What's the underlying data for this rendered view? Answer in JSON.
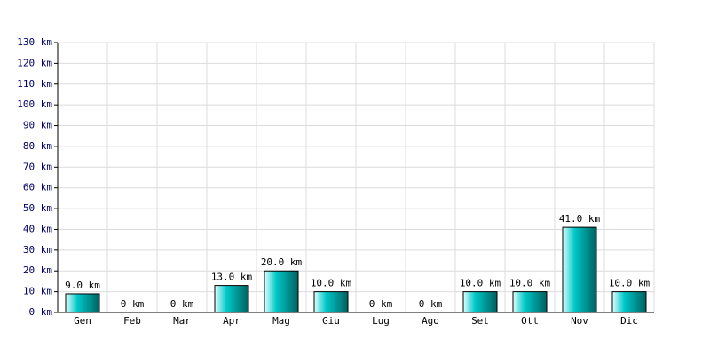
{
  "chart_data": {
    "type": "bar",
    "categories": [
      "Gen",
      "Feb",
      "Mar",
      "Apr",
      "Mag",
      "Giu",
      "Lug",
      "Ago",
      "Set",
      "Ott",
      "Nov",
      "Dic"
    ],
    "values": [
      9,
      0,
      0,
      13,
      20,
      10,
      0,
      0,
      10,
      10,
      41,
      10
    ],
    "value_labels": [
      "9.0 km",
      "0 km",
      "0 km",
      "13.0 km",
      "20.0 km",
      "10.0 km",
      "0 km",
      "0 km",
      "10.0 km",
      "10.0 km",
      "41.0 km",
      "10.0 km"
    ],
    "color": "#00c8c8",
    "ylim": [
      0,
      130
    ],
    "yticks": [
      {
        "value": 0,
        "label": "0 km"
      },
      {
        "value": 10,
        "label": "10 km"
      },
      {
        "value": 20,
        "label": "20 km"
      },
      {
        "value": 30,
        "label": "30 km"
      },
      {
        "value": 40,
        "label": "40 km"
      },
      {
        "value": 50,
        "label": "50 km"
      },
      {
        "value": 60,
        "label": "60 km"
      },
      {
        "value": 70,
        "label": "70 km"
      },
      {
        "value": 80,
        "label": "80 km"
      },
      {
        "value": 90,
        "label": "90 km"
      },
      {
        "value": 100,
        "label": "100 km"
      },
      {
        "value": 110,
        "label": "110 km"
      },
      {
        "value": 120,
        "label": "120 km"
      },
      {
        "value": 130,
        "label": "130 km"
      }
    ],
    "grid": true
  }
}
